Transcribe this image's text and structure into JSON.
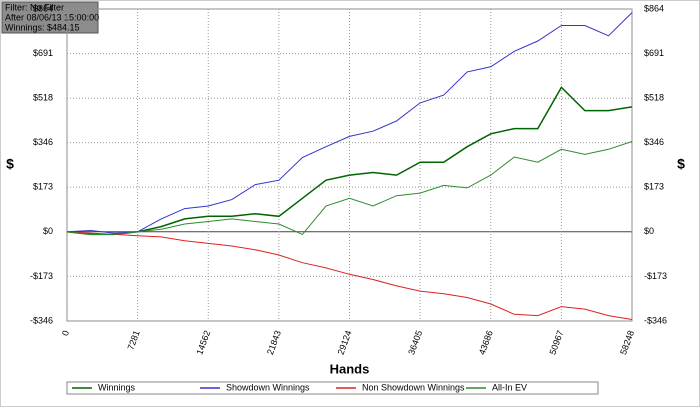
{
  "info": [
    "Filter: No Filter",
    "After 08/06/13 15:00:00",
    "Winnings: $484.15"
  ],
  "chart_data": {
    "type": "line",
    "xlabel": "Hands",
    "ylabel": "$",
    "x": [
      0,
      2427,
      4854,
      7281,
      9708,
      12135,
      14562,
      16989,
      19416,
      21843,
      24270,
      26697,
      29124,
      31551,
      33978,
      36405,
      38832,
      41259,
      43686,
      46113,
      48540,
      50967,
      53394,
      55821,
      58248
    ],
    "xlim": [
      0,
      58248
    ],
    "xticks": [
      0,
      7281,
      14562,
      21843,
      29124,
      36405,
      43686,
      50967,
      58248
    ],
    "ylim": [
      -346,
      864
    ],
    "yticks": [
      {
        "value": -346,
        "label": "-$346"
      },
      {
        "value": -173,
        "label": "-$173"
      },
      {
        "value": 0,
        "label": "$0"
      },
      {
        "value": 173,
        "label": "$173"
      },
      {
        "value": 346,
        "label": "$346"
      },
      {
        "value": 518,
        "label": "$518"
      },
      {
        "value": 691,
        "label": "$691"
      },
      {
        "value": 864,
        "label": "$864"
      }
    ],
    "grid": true,
    "series": [
      {
        "name": "Winnings",
        "color": "#006400",
        "values": [
          0,
          -10,
          -10,
          0,
          20,
          50,
          60,
          60,
          70,
          60,
          130,
          200,
          220,
          230,
          220,
          270,
          270,
          330,
          380,
          400,
          400,
          560,
          470,
          470,
          484.15
        ]
      },
      {
        "name": "Showdown Winnings",
        "color": "#3333cc",
        "values": [
          0,
          5,
          -5,
          0,
          50,
          90,
          100,
          125,
          183,
          200,
          288,
          330,
          370,
          390,
          430,
          500,
          530,
          620,
          640,
          700,
          740,
          800,
          800,
          760,
          850
        ]
      },
      {
        "name": "Non Showdown Winnings",
        "color": "#dd2222",
        "values": [
          0,
          -5,
          -10,
          -15,
          -20,
          -35,
          -45,
          -55,
          -70,
          -90,
          -120,
          -140,
          -165,
          -185,
          -210,
          -230,
          -240,
          -255,
          -280,
          -320,
          -325,
          -290,
          -300,
          -325,
          -340
        ]
      },
      {
        "name": "All-In EV",
        "color": "#2e8b2e",
        "values": [
          0,
          -10,
          -10,
          0,
          10,
          30,
          40,
          50,
          40,
          30,
          -10,
          100,
          130,
          100,
          140,
          150,
          180,
          170,
          220,
          290,
          270,
          320,
          300,
          320,
          350
        ]
      }
    ]
  }
}
